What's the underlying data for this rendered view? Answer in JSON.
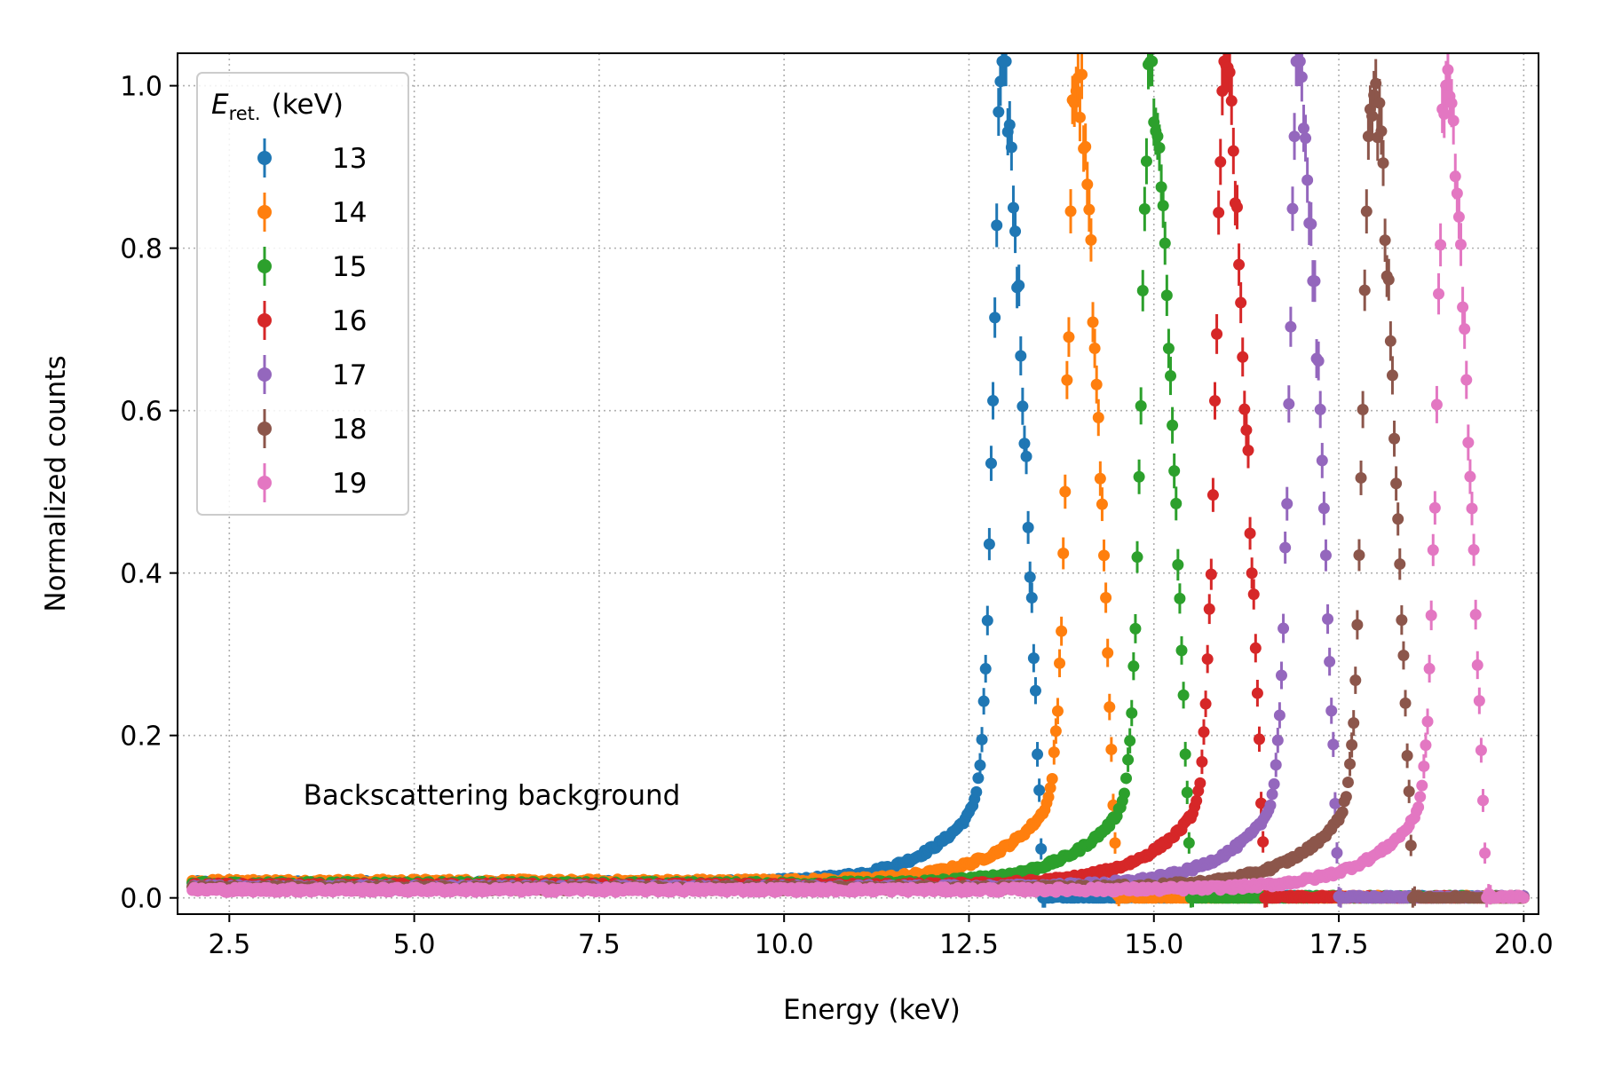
{
  "chart_data": {
    "type": "scatter",
    "xlabel": "Energy (keV)",
    "ylabel": "Normalized counts",
    "xlim": [
      1.8,
      20.2
    ],
    "ylim": [
      -0.02,
      1.04
    ],
    "xticks": [
      "2.5",
      "5.0",
      "7.5",
      "10.0",
      "12.5",
      "15.0",
      "17.5",
      "20.0"
    ],
    "xtick_values": [
      2.5,
      5.0,
      7.5,
      10.0,
      12.5,
      15.0,
      17.5,
      20.0
    ],
    "yticks": [
      "0.0",
      "0.2",
      "0.4",
      "0.6",
      "0.8",
      "1.0"
    ],
    "ytick_values": [
      0.0,
      0.2,
      0.4,
      0.6,
      0.8,
      1.0
    ],
    "grid": true,
    "legend": {
      "title_symbol": "E",
      "title_subscript": "ret.",
      "title_unit": "(keV)",
      "placement": "top-left"
    },
    "annotation": "Backscattering background",
    "annotation_pos": [
      3.5,
      0.115
    ],
    "series": [
      {
        "name": "13",
        "color": "#1f77b4",
        "peak_energy": 13.0,
        "peak_value": 1.0,
        "background": 0.018
      },
      {
        "name": "14",
        "color": "#ff7f0e",
        "peak_energy": 14.0,
        "peak_value": 1.0,
        "background": 0.02
      },
      {
        "name": "15",
        "color": "#2ca02c",
        "peak_energy": 15.0,
        "peak_value": 1.0,
        "background": 0.017
      },
      {
        "name": "16",
        "color": "#d62728",
        "peak_energy": 16.0,
        "peak_value": 1.0,
        "background": 0.015
      },
      {
        "name": "17",
        "color": "#9467bd",
        "peak_energy": 17.0,
        "peak_value": 1.0,
        "background": 0.013
      },
      {
        "name": "18",
        "color": "#8c564b",
        "peak_energy": 18.0,
        "peak_value": 1.0,
        "background": 0.012
      },
      {
        "name": "19",
        "color": "#e377c2",
        "peak_energy": 19.0,
        "peak_value": 1.0,
        "background": 0.01
      }
    ]
  }
}
